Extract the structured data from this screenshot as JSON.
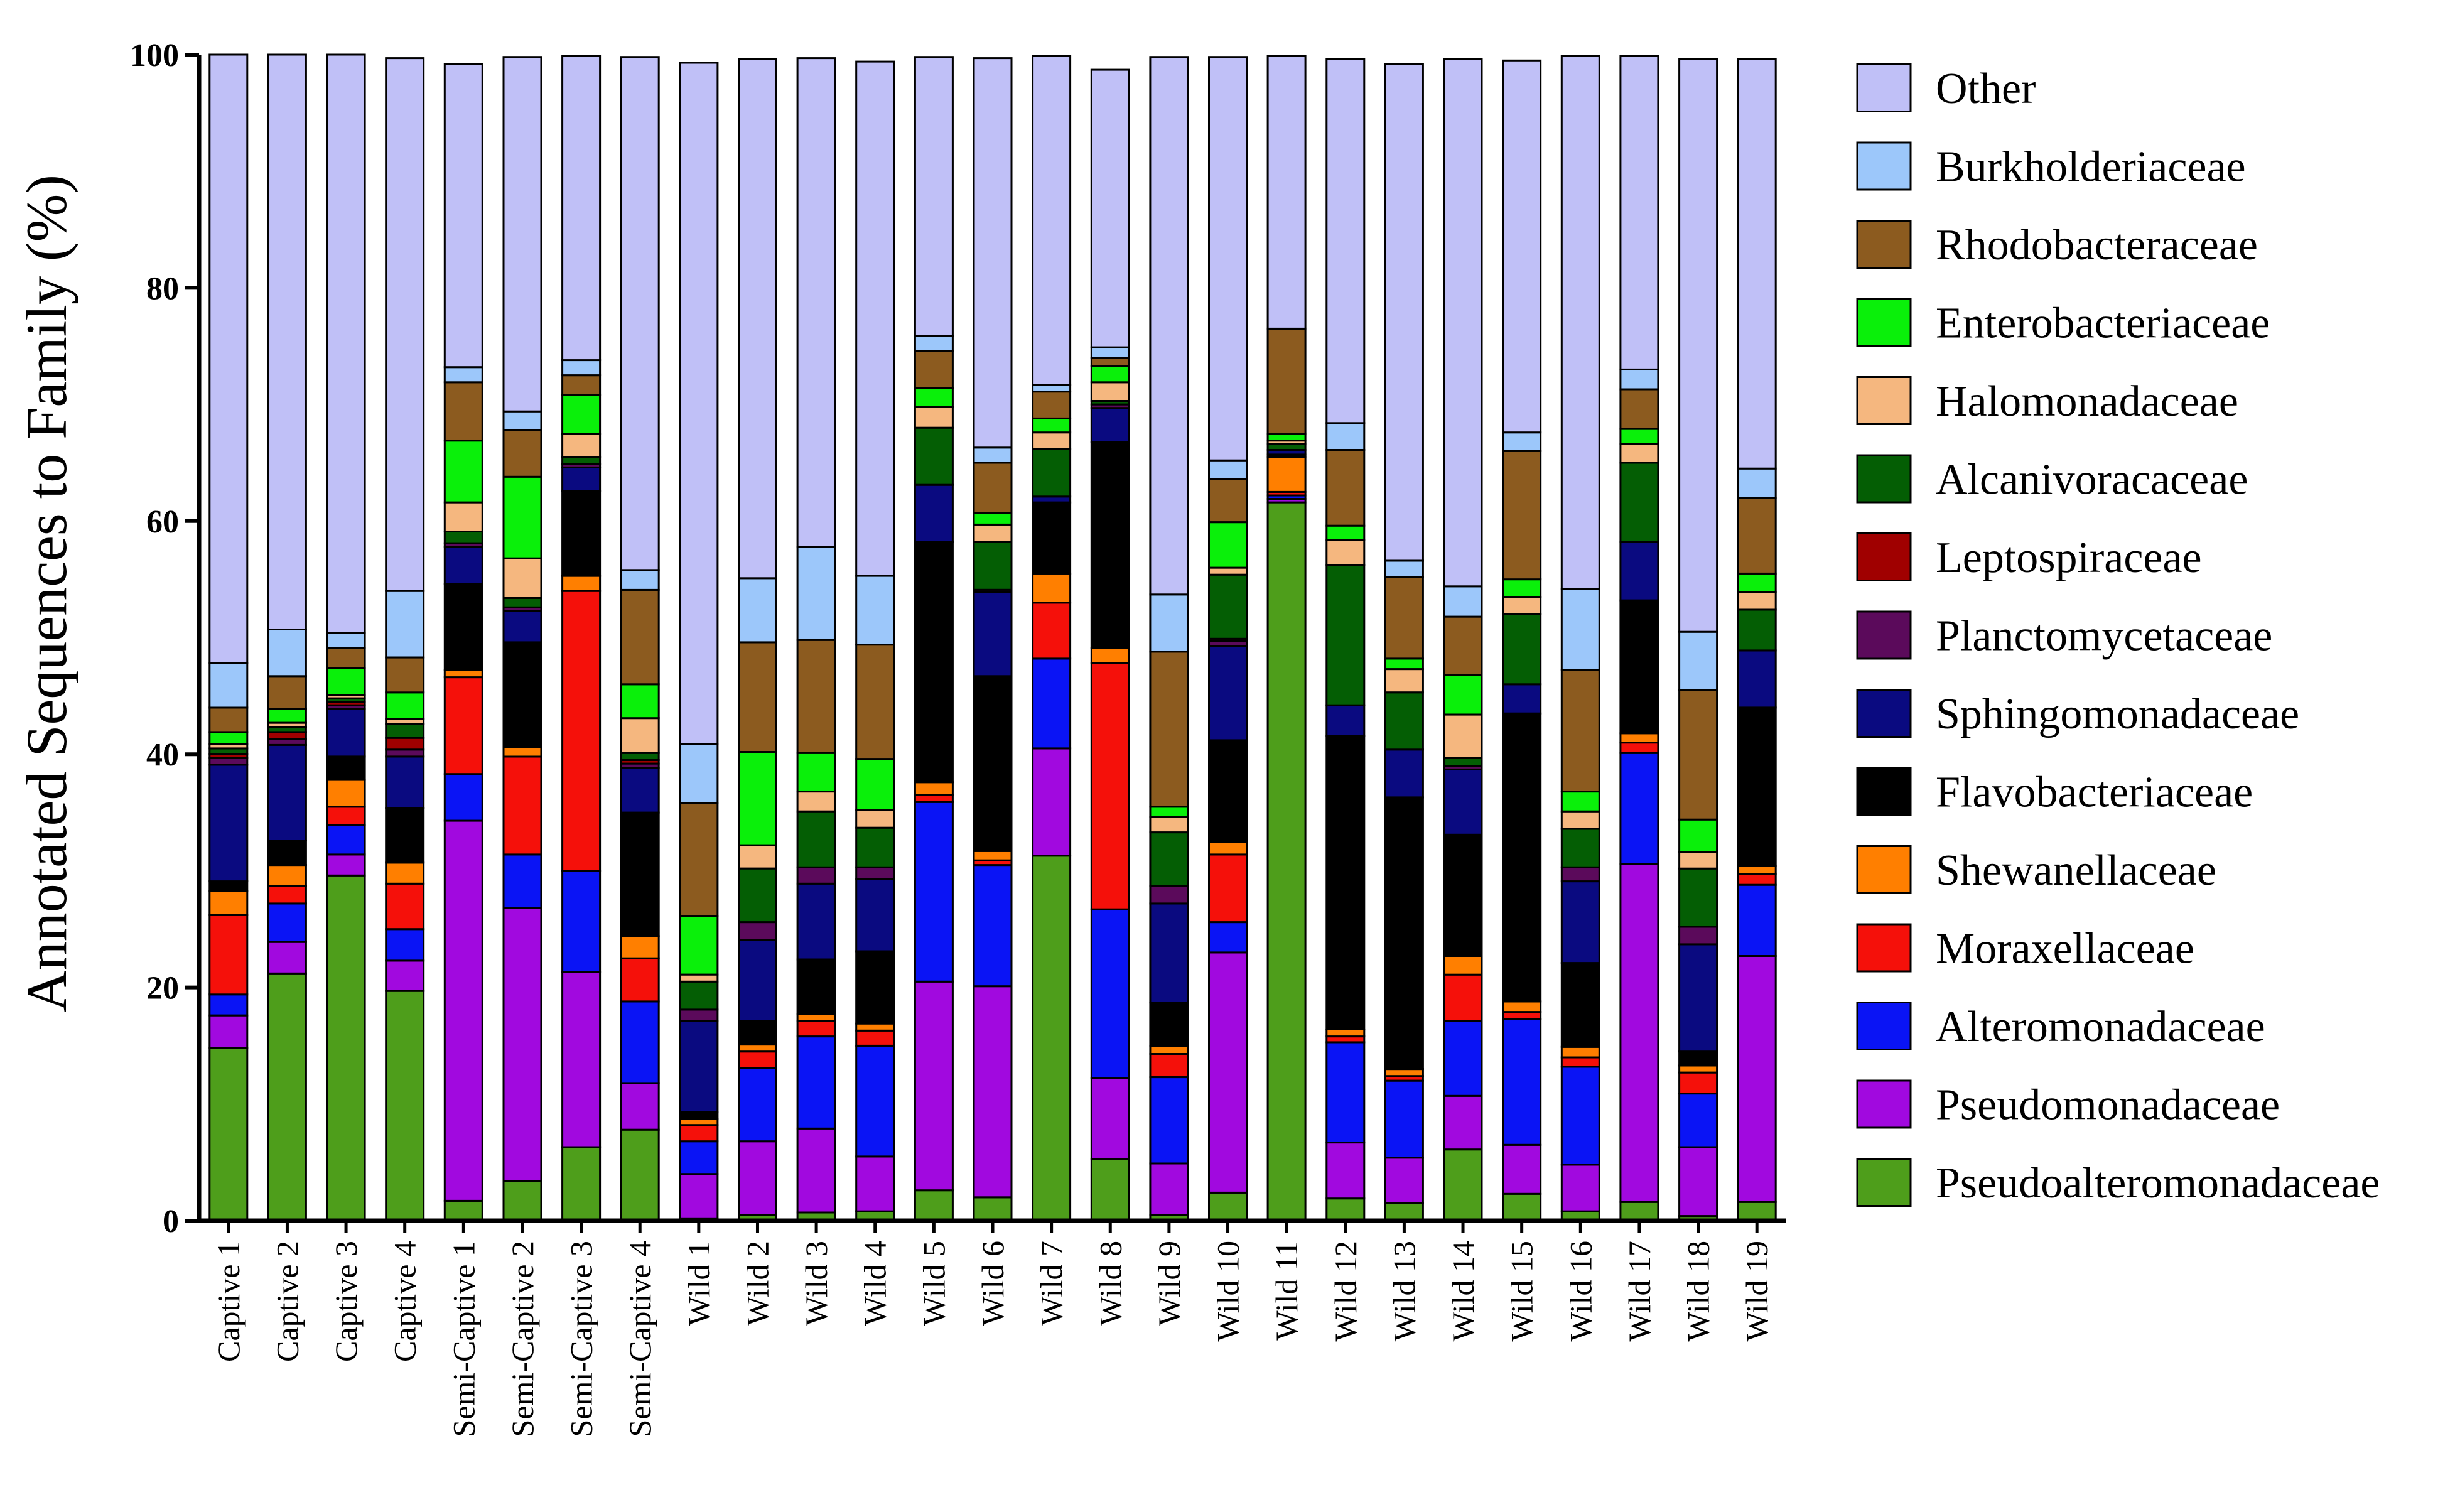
{
  "chart_data": {
    "type": "bar",
    "stacked": true,
    "title": "",
    "xlabel": "",
    "ylabel": "Annotated Sequences to Family (%)",
    "ylim": [
      0,
      100
    ],
    "yticks": [
      0,
      20,
      40,
      60,
      80,
      100
    ],
    "legend_position": "right",
    "categories": [
      "Captive 1",
      "Captive 2",
      "Captive 3",
      "Captive 4",
      "Semi-Captive 1",
      "Semi-Captive 2",
      "Semi-Captive 3",
      "Semi-Captive 4",
      "Wild 1",
      "Wild 2",
      "Wild 3",
      "Wild 4",
      "Wild 5",
      "Wild 6",
      "Wild 7",
      "Wild 8",
      "Wild 9",
      "Wild 10",
      "Wild 11",
      "Wild 12",
      "Wild 13",
      "Wild 14",
      "Wild 15",
      "Wild 16",
      "Wild 17",
      "Wild 18",
      "Wild 19"
    ],
    "series": [
      {
        "name": "Pseudoalteromonadaceae",
        "color": "#4E9E1B",
        "values": [
          14.8,
          21.2,
          29.6,
          19.7,
          1.7,
          3.4,
          6.3,
          7.8,
          0.2,
          0.5,
          0.7,
          0.8,
          2.6,
          2.0,
          31.3,
          5.3,
          0.5,
          2.4,
          61.6,
          1.9,
          1.5,
          6.1,
          2.3,
          0.8,
          1.6,
          0.4,
          1.6
        ]
      },
      {
        "name": "Pseudomonadaceae",
        "color": "#A109DF",
        "values": [
          2.8,
          2.7,
          1.8,
          2.6,
          32.6,
          23.4,
          15.0,
          4.0,
          3.8,
          6.3,
          7.2,
          4.7,
          17.9,
          18.1,
          9.2,
          6.9,
          4.4,
          20.6,
          0.3,
          4.8,
          3.9,
          4.6,
          4.2,
          4.0,
          29.0,
          5.9,
          21.1
        ]
      },
      {
        "name": "Alteromonadaceae",
        "color": "#0A14F5",
        "values": [
          1.8,
          3.3,
          2.5,
          2.7,
          4.0,
          4.6,
          8.7,
          7.0,
          2.8,
          6.3,
          7.9,
          9.5,
          15.4,
          10.4,
          7.7,
          14.5,
          7.4,
          2.6,
          0.3,
          8.6,
          6.6,
          6.4,
          10.8,
          8.4,
          9.5,
          4.6,
          6.1
        ]
      },
      {
        "name": "Moraxellaceae",
        "color": "#F5100A",
        "values": [
          6.8,
          1.5,
          1.6,
          3.9,
          8.3,
          8.4,
          24.0,
          3.7,
          1.4,
          1.4,
          1.3,
          1.3,
          0.6,
          0.4,
          4.8,
          21.1,
          2.0,
          5.8,
          0.3,
          0.5,
          0.4,
          4.0,
          0.6,
          0.8,
          0.9,
          1.8,
          0.9
        ]
      },
      {
        "name": "Shewanellaceae",
        "color": "#FF7F00",
        "values": [
          2.1,
          1.8,
          2.3,
          1.8,
          0.6,
          0.8,
          1.3,
          1.9,
          0.5,
          0.6,
          0.6,
          0.6,
          1.1,
          0.8,
          2.5,
          1.3,
          0.7,
          1.1,
          3.0,
          0.6,
          0.6,
          1.6,
          0.9,
          0.9,
          0.8,
          0.6,
          0.7
        ]
      },
      {
        "name": "Flavobacteriaceae",
        "color": "#000000",
        "values": [
          0.8,
          2.1,
          2.0,
          4.7,
          7.4,
          9.0,
          7.3,
          10.6,
          0.6,
          2.0,
          4.7,
          6.2,
          20.6,
          15.0,
          6.1,
          17.7,
          3.7,
          8.7,
          0.2,
          25.2,
          23.3,
          10.4,
          24.7,
          7.2,
          11.4,
          1.2,
          13.6
        ]
      },
      {
        "name": "Sphingomonadaceae",
        "color": "#0A0A80",
        "values": [
          10.0,
          8.2,
          4.1,
          4.4,
          3.2,
          2.7,
          2.0,
          3.8,
          7.8,
          7.0,
          6.5,
          6.2,
          4.9,
          7.2,
          0.5,
          2.9,
          8.5,
          8.1,
          0.4,
          2.6,
          4.1,
          5.6,
          2.5,
          7.0,
          5.0,
          9.2,
          4.9
        ]
      },
      {
        "name": "Planctomycetaceae",
        "color": "#5B0A5B",
        "values": [
          0.6,
          0.5,
          0.3,
          0.6,
          0.3,
          0.3,
          0.3,
          0.4,
          1.0,
          1.5,
          1.4,
          1.0,
          0.0,
          0.2,
          0.0,
          0.3,
          1.5,
          0.4,
          0.0,
          0.0,
          0.0,
          0.3,
          0.0,
          1.2,
          0.0,
          1.5,
          0.0
        ]
      },
      {
        "name": "Leptospiraceae",
        "color": "#A00000",
        "values": [
          0.3,
          0.6,
          0.3,
          1.0,
          0.0,
          0.0,
          0.0,
          0.3,
          0.0,
          0.0,
          0.0,
          0.0,
          0.0,
          0.0,
          0.0,
          0.0,
          0.0,
          0.2,
          0.0,
          0.0,
          0.0,
          0.0,
          0.0,
          0.0,
          0.0,
          0.0,
          0.0
        ]
      },
      {
        "name": "Alcanivoracaceae",
        "color": "#045E04",
        "values": [
          0.5,
          0.4,
          0.3,
          1.2,
          1.0,
          0.8,
          0.6,
          0.6,
          2.4,
          4.6,
          4.8,
          3.4,
          4.9,
          4.1,
          4.1,
          0.3,
          4.6,
          5.5,
          0.5,
          12.0,
          4.9,
          0.7,
          6.0,
          3.3,
          6.8,
          5.0,
          3.5
        ]
      },
      {
        "name": "Halomonadaceae",
        "color": "#F5B77F",
        "values": [
          0.4,
          0.4,
          0.3,
          0.4,
          2.5,
          3.4,
          2.0,
          3.0,
          0.6,
          2.0,
          1.7,
          1.5,
          1.8,
          1.5,
          1.4,
          1.6,
          1.3,
          0.6,
          0.3,
          2.2,
          2.0,
          3.7,
          1.5,
          1.5,
          1.6,
          1.4,
          1.5
        ]
      },
      {
        "name": "Enterobacteriaceae",
        "color": "#0AF00A",
        "values": [
          1.0,
          1.2,
          2.3,
          2.3,
          5.3,
          7.0,
          3.3,
          2.9,
          5.0,
          8.0,
          3.3,
          4.4,
          1.6,
          1.0,
          1.2,
          1.4,
          0.9,
          3.9,
          0.6,
          1.2,
          0.9,
          3.4,
          1.5,
          1.7,
          1.3,
          2.8,
          1.6
        ]
      },
      {
        "name": "Rhodobacteraceae",
        "color": "#8C5B1F",
        "values": [
          2.1,
          2.8,
          1.7,
          3.0,
          5.0,
          4.0,
          1.7,
          8.1,
          9.7,
          9.4,
          9.7,
          9.8,
          3.2,
          4.3,
          2.3,
          0.7,
          13.3,
          3.7,
          9.0,
          6.5,
          7.0,
          5.0,
          11.0,
          10.4,
          3.4,
          11.1,
          6.5
        ]
      },
      {
        "name": "Burkholderiaceae",
        "color": "#9CC7FA",
        "values": [
          3.8,
          4.0,
          1.3,
          5.7,
          1.3,
          1.6,
          1.3,
          1.7,
          5.1,
          5.5,
          8.0,
          5.9,
          1.3,
          1.3,
          0.6,
          0.9,
          4.9,
          1.6,
          0.0,
          2.3,
          1.4,
          2.6,
          1.6,
          7.0,
          1.7,
          5.0,
          2.5
        ]
      },
      {
        "name": "Other",
        "color": "#C0C0F7",
        "values": [
          53.2,
          49.3,
          49.6,
          45.7,
          26.0,
          30.4,
          26.1,
          44.0,
          58.4,
          44.5,
          41.9,
          44.1,
          23.9,
          33.4,
          28.2,
          23.8,
          46.1,
          34.6,
          23.4,
          31.2,
          42.6,
          45.2,
          31.9,
          45.7,
          26.9,
          49.1,
          35.1
        ]
      }
    ]
  }
}
